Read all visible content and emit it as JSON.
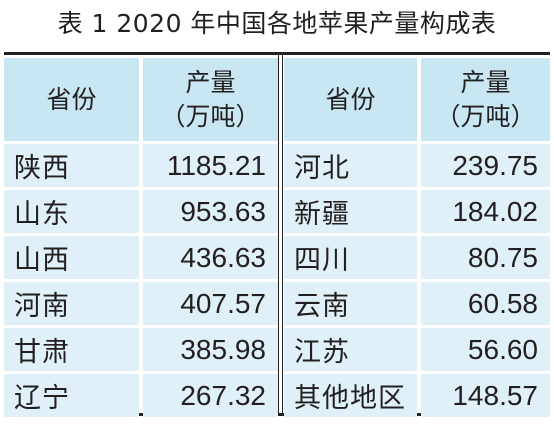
{
  "title": "表 1  2020 年中国各地苹果产量构成表",
  "header": {
    "province": "省份",
    "output_line1": "产量",
    "output_line2": "（万吨）"
  },
  "left_rows": [
    {
      "province": "陕西",
      "value": "1185.21"
    },
    {
      "province": "山东",
      "value": "953.63"
    },
    {
      "province": "山西",
      "value": "436.63"
    },
    {
      "province": "河南",
      "value": "407.57"
    },
    {
      "province": "甘肃",
      "value": "385.98"
    },
    {
      "province": "辽宁",
      "value": "267.32"
    }
  ],
  "right_rows": [
    {
      "province": "河北",
      "value": "239.75"
    },
    {
      "province": "新疆",
      "value": "184.02"
    },
    {
      "province": "四川",
      "value": "80.75"
    },
    {
      "province": "云南",
      "value": "60.58"
    },
    {
      "province": "江苏",
      "value": "56.60"
    },
    {
      "province": "其他地区",
      "value": "148.57"
    }
  ],
  "colors": {
    "header_bg": "#c9e7f3",
    "cell_bg": "#dff0f8",
    "text": "#231f20"
  }
}
